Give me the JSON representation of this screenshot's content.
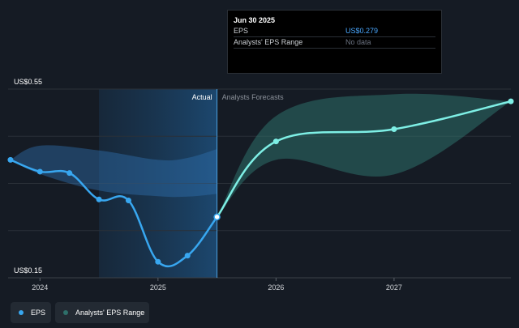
{
  "tooltip": {
    "date": "Jun 30 2025",
    "rows": [
      {
        "label": "EPS",
        "value": "US$0.279",
        "value_color": "#4aa8ff"
      },
      {
        "label": "Analysts' EPS Range",
        "value": "No data",
        "value_color": "#6b7280"
      }
    ]
  },
  "legend": [
    {
      "label": "EPS",
      "color": "#38a7f0"
    },
    {
      "label": "Analysts' EPS Range",
      "color": "#2e6f6a"
    }
  ],
  "chart_data": {
    "type": "line",
    "y_tick_labels": [
      "US$0.55",
      "US$0.15"
    ],
    "ylim": [
      0.15,
      0.55
    ],
    "xlim": [
      2023.73,
      2027.99
    ],
    "x_ticks": [
      2024,
      2025,
      2026,
      2027
    ],
    "x_tick_labels": [
      "2024",
      "2025",
      "2026",
      "2027"
    ],
    "grid": true,
    "region_labels": {
      "actual": "Actual",
      "forecast": "Analysts Forecasts"
    },
    "actual_region_start": 2024.5,
    "divider_x": 2025.5,
    "series": [
      {
        "name": "EPS",
        "color": "#38a7f0",
        "points": [
          [
            2023.75,
            0.4
          ],
          [
            2024.0,
            0.375
          ],
          [
            2024.25,
            0.372
          ],
          [
            2024.5,
            0.316
          ],
          [
            2024.75,
            0.314
          ],
          [
            2025.0,
            0.184
          ],
          [
            2025.25,
            0.197
          ],
          [
            2025.5,
            0.279
          ]
        ]
      },
      {
        "name": "EPS forecast",
        "color": "#7eefe5",
        "points": [
          [
            2025.5,
            0.279
          ],
          [
            2026.0,
            0.439
          ],
          [
            2027.0,
            0.465
          ],
          [
            2027.99,
            0.524
          ]
        ]
      }
    ],
    "bands": [
      {
        "name": "Past analysts' EPS range",
        "color": "#2f6fae",
        "x": [
          2023.75,
          2024.0,
          2024.5,
          2025.0,
          2025.25,
          2025.5
        ],
        "upper": [
          0.4,
          0.43,
          0.42,
          0.4,
          0.404,
          0.423
        ],
        "lower": [
          0.4,
          0.37,
          0.335,
          0.323,
          0.322,
          0.328
        ]
      },
      {
        "name": "Analysts' EPS range",
        "color": "#2e6f6a",
        "x": [
          2025.5,
          2026.0,
          2027.0,
          2027.99
        ],
        "upper": [
          0.279,
          0.493,
          0.539,
          0.524
        ],
        "lower": [
          0.279,
          0.4,
          0.369,
          0.524
        ]
      }
    ]
  }
}
